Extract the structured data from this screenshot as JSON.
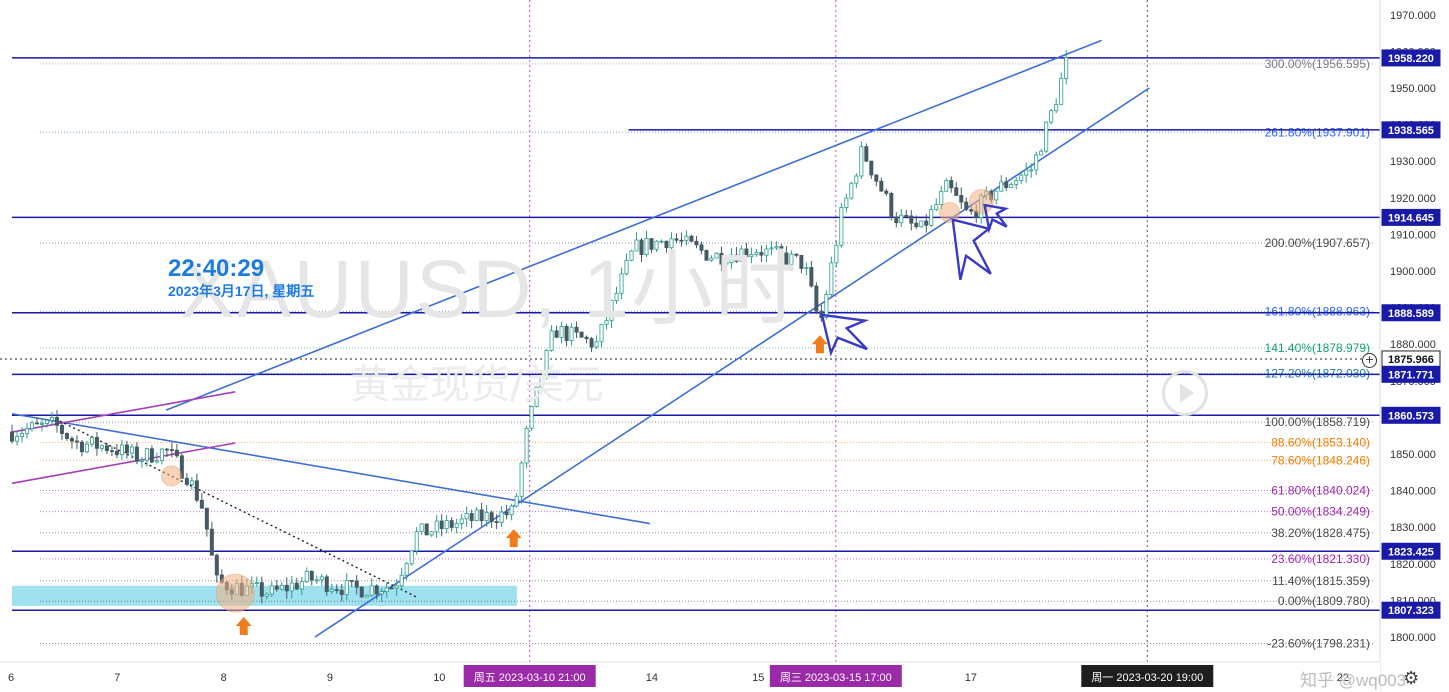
{
  "clock": {
    "time": "22:40:29",
    "date": "2023年3月17日, 星期五"
  },
  "watermark": {
    "title": "XAUUSD, 1小时",
    "subtitle": "黄金现货/美元"
  },
  "author": "知乎 @wq003",
  "colors": {
    "candle_up": "#2a9d8f",
    "candle_down": "#455a64",
    "level_line": "#1a1aa8",
    "trend_line": "#3d6fd6",
    "channel_purple": "#a53fb4",
    "zone": "#8fdcec"
  },
  "chart_data": {
    "type": "candlestick",
    "title": "",
    "symbol": "XAUUSD",
    "timeframe": "1小时",
    "ylim": [
      1794,
      1975
    ],
    "y_ticks": [
      1800,
      1810,
      1820,
      1830,
      1840,
      1850,
      1860,
      1870,
      1880,
      1890,
      1900,
      1910,
      1920,
      1930,
      1940,
      1950,
      1960,
      1970
    ],
    "y_tick_labels": [
      "1800.000",
      "1810.000",
      "1820.000",
      "1830.000",
      "1840.000",
      "1850.000",
      "1860.000",
      "1870.000",
      "1880.000",
      "1890.000",
      "1900.000",
      "1910.000",
      "1920.000",
      "1930.000",
      "1940.000",
      "1950.000",
      "1960.000",
      "1970.000"
    ],
    "x_ticks": [
      {
        "label": "6",
        "x": 0
      },
      {
        "label": "7",
        "x": 1
      },
      {
        "label": "8",
        "x": 2
      },
      {
        "label": "9",
        "x": 3
      },
      {
        "label": "10",
        "x": 4
      },
      {
        "label": "14",
        "x": 6
      },
      {
        "label": "15",
        "x": 7
      },
      {
        "label": "17",
        "x": 9
      },
      {
        "label": "22",
        "x": 12.5
      }
    ],
    "x_highlight_labels": [
      {
        "label": "周五 2023-03-10  21:00",
        "x": 4.87
      },
      {
        "label": "周三 2023-03-15  17:00",
        "x": 7.75
      },
      {
        "label": "周一 2023-03-20  19:00",
        "x": 10.68
      }
    ],
    "price_labels": [
      {
        "value": 1958.22,
        "label": "1958.220"
      },
      {
        "value": 1938.565,
        "label": "1938.565"
      },
      {
        "value": 1914.645,
        "label": "1914.645"
      },
      {
        "value": 1888.589,
        "label": "1888.589"
      },
      {
        "value": 1875.966,
        "label": "1875.966"
      },
      {
        "value": 1871.771,
        "label": "1871.771"
      },
      {
        "value": 1860.573,
        "label": "1860.573"
      },
      {
        "value": 1823.425,
        "label": "1823.425"
      },
      {
        "value": 1807.323,
        "label": "1807.323"
      }
    ],
    "fib_levels": [
      {
        "label": "300.00%(1956.595)",
        "value": 1956.595,
        "color": "#787b86"
      },
      {
        "label": "261.80%(1937.901)",
        "value": 1937.901,
        "color": "#2962ff"
      },
      {
        "label": "200.00%(1907.657)",
        "value": 1907.657,
        "color": "#4a4a4a"
      },
      {
        "label": "161.80%(1888.963)",
        "value": 1888.963,
        "color": "#2962ff"
      },
      {
        "label": "141.40%(1878.979)",
        "value": 1878.979,
        "color": "#1b9e77"
      },
      {
        "label": "127.20%(1872.030)",
        "value": 1872.03,
        "color": "#1b7a9e"
      },
      {
        "label": "100.00%(1858.719)",
        "value": 1858.719,
        "color": "#4a4a4a"
      },
      {
        "label": "88.60%(1853.140)",
        "value": 1853.14,
        "color": "#f57c00"
      },
      {
        "label": "78.60%(1848.246)",
        "value": 1848.246,
        "color": "#f57c00"
      },
      {
        "label": "61.80%(1840.024)",
        "value": 1840.024,
        "color": "#9c27b0"
      },
      {
        "label": "50.00%(1834.249)",
        "value": 1834.249,
        "color": "#9c27b0"
      },
      {
        "label": "38.20%(1828.475)",
        "value": 1828.475,
        "color": "#4a4a4a"
      },
      {
        "label": "23.60%(1821.330)",
        "value": 1821.33,
        "color": "#9c27b0"
      },
      {
        "label": "11.40%(1815.359)",
        "value": 1815.359,
        "color": "#4a4a4a"
      },
      {
        "label": "0.00%(1809.780)",
        "value": 1809.78,
        "color": "#4a4a4a"
      },
      {
        "label": "-23.60%(1798.231)",
        "value": 1798.231,
        "color": "#4a4a4a"
      }
    ],
    "horizontal_levels": [
      1958.22,
      1938.565,
      1914.645,
      1888.589,
      1871.771,
      1860.573,
      1823.425,
      1807.323
    ],
    "level_starts": [
      0,
      5.8,
      0,
      0,
      0,
      0,
      0,
      0
    ],
    "current_price": 1875.966,
    "trend_lines": [
      {
        "x1": 1.45,
        "y1": 1862,
        "x2": 10.25,
        "y2": 1963
      },
      {
        "x1": 2.85,
        "y1": 1800,
        "x2": 10.7,
        "y2": 1950
      },
      {
        "x1": 0.0,
        "y1": 1861,
        "x2": 6.0,
        "y2": 1831
      }
    ],
    "purple_channel": [
      {
        "x1": 0.0,
        "y1": 1842,
        "x2": 2.1,
        "y2": 1853
      },
      {
        "x1": 0.0,
        "y1": 1856,
        "x2": 2.1,
        "y2": 1867
      }
    ],
    "dotted_trend": {
      "x1": 0.45,
      "y1": 1859,
      "x2": 3.8,
      "y2": 1811
    },
    "support_zone": [
      1808.5,
      1814
    ],
    "support_zone_x": [
      0,
      4.75
    ],
    "close_path": [
      {
        "x": 0.0,
        "y": 1856
      },
      {
        "x": 0.4,
        "y": 1858
      },
      {
        "x": 0.6,
        "y": 1853
      },
      {
        "x": 0.9,
        "y": 1852
      },
      {
        "x": 1.2,
        "y": 1849
      },
      {
        "x": 1.45,
        "y": 1851
      },
      {
        "x": 1.65,
        "y": 1844
      },
      {
        "x": 1.8,
        "y": 1835
      },
      {
        "x": 1.92,
        "y": 1815
      },
      {
        "x": 2.2,
        "y": 1813
      },
      {
        "x": 2.45,
        "y": 1812
      },
      {
        "x": 2.8,
        "y": 1816
      },
      {
        "x": 3.2,
        "y": 1813
      },
      {
        "x": 3.6,
        "y": 1814
      },
      {
        "x": 3.8,
        "y": 1828
      },
      {
        "x": 4.3,
        "y": 1832
      },
      {
        "x": 4.72,
        "y": 1834
      },
      {
        "x": 4.85,
        "y": 1857
      },
      {
        "x": 5.1,
        "y": 1884
      },
      {
        "x": 5.5,
        "y": 1880
      },
      {
        "x": 5.85,
        "y": 1906
      },
      {
        "x": 6.2,
        "y": 1909
      },
      {
        "x": 6.6,
        "y": 1904
      },
      {
        "x": 7.0,
        "y": 1906
      },
      {
        "x": 7.45,
        "y": 1902
      },
      {
        "x": 7.6,
        "y": 1885
      },
      {
        "x": 7.8,
        "y": 1915
      },
      {
        "x": 8.0,
        "y": 1933
      },
      {
        "x": 8.3,
        "y": 1915
      },
      {
        "x": 8.55,
        "y": 1911
      },
      {
        "x": 8.8,
        "y": 1923
      },
      {
        "x": 9.0,
        "y": 1915
      },
      {
        "x": 9.25,
        "y": 1922
      },
      {
        "x": 9.6,
        "y": 1928
      },
      {
        "x": 9.8,
        "y": 1945
      },
      {
        "x": 9.92,
        "y": 1957
      }
    ]
  }
}
